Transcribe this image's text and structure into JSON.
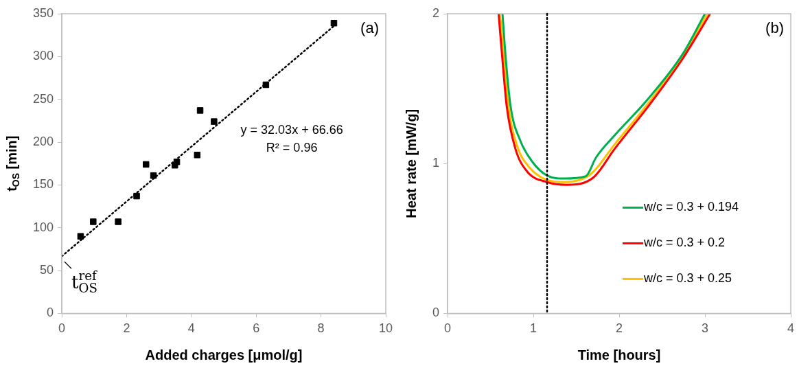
{
  "chart_data": [
    {
      "type": "scatter",
      "xlabel": "Added charges [μmol/g]",
      "ylabel": "t$_{OS}$ [min]",
      "xlim": [
        0,
        10
      ],
      "ylim": [
        0,
        350
      ],
      "xticks": [
        0,
        2,
        4,
        6,
        8,
        10
      ],
      "yticks": [
        0,
        50,
        100,
        150,
        200,
        250,
        300,
        350
      ],
      "grid": false,
      "legend": false,
      "marker": "square",
      "x": [
        0.58,
        0.97,
        1.74,
        2.31,
        2.6,
        2.83,
        3.49,
        3.55,
        4.18,
        4.27,
        4.7,
        6.3,
        8.4
      ],
      "series": [
        {
          "color": "#000000",
          "values": [
            90,
            107,
            107,
            137,
            174,
            161,
            173,
            177,
            185,
            237,
            224,
            267,
            339
          ]
        },
        {
          "type": "line",
          "color": "#000000",
          "marker": "none",
          "line_style": "dotted",
          "x": [
            0,
            8.4
          ],
          "values": [
            66.66,
            335.71
          ]
        }
      ],
      "annotations": [
        "(a)",
        "y = 32.03x + 66.66",
        "R² = 0.96",
        {
          "text": "t$_{OS}$$^{ref}$",
          "x": 0,
          "y": 66.66
        }
      ]
    },
    {
      "type": "line",
      "xlabel": "Time [hours]",
      "ylabel": "Heat rate [mW/g]",
      "xlim": [
        0,
        4
      ],
      "ylim": [
        0,
        2
      ],
      "xticks": [
        0,
        1,
        2,
        3,
        4
      ],
      "yticks": [
        0,
        1,
        2
      ],
      "grid": false,
      "legend": "bottom right",
      "marker": "none",
      "line_style": "solid",
      "series": [
        {
          "name": "w/c = 0.3 + 0.194",
          "color": "#00b050",
          "x": [
            0.64,
            0.68,
            0.735,
            0.85,
            0.99,
            1.16,
            1.36,
            1.61,
            1.73,
            1.95,
            2.32,
            2.74,
            3.0
          ],
          "values": [
            2.0,
            1.69,
            1.38,
            1.15,
            1.01,
            0.92,
            0.9,
            0.915,
            1.04,
            1.19,
            1.42,
            1.73,
            2.0
          ]
        },
        {
          "name": "w/c = 0.3 + 0.2",
          "color": "#ff0000",
          "x": [
            0.595,
            0.64,
            0.69,
            0.79,
            0.93,
            1.16,
            1.39,
            1.7,
            1.95,
            2.35,
            2.74,
            3.06
          ],
          "values": [
            2.0,
            1.69,
            1.38,
            1.1,
            0.945,
            0.876,
            0.858,
            0.907,
            1.1,
            1.39,
            1.7,
            2.0
          ]
        },
        {
          "name": "w/c = 0.3 + 0.25",
          "color": "#ffc000",
          "x": [
            0.61,
            0.66,
            0.71,
            0.81,
            0.96,
            1.16,
            1.36,
            1.67,
            1.95,
            2.35,
            2.74,
            3.03
          ],
          "values": [
            2.0,
            1.69,
            1.38,
            1.12,
            0.97,
            0.89,
            0.876,
            0.93,
            1.13,
            1.41,
            1.72,
            2.0
          ]
        }
      ],
      "ref_lines": [
        {
          "axis": "x",
          "value": 1.16,
          "color": "#000000",
          "line_style": "dotted"
        }
      ],
      "annotations": [
        "(b)"
      ]
    }
  ]
}
